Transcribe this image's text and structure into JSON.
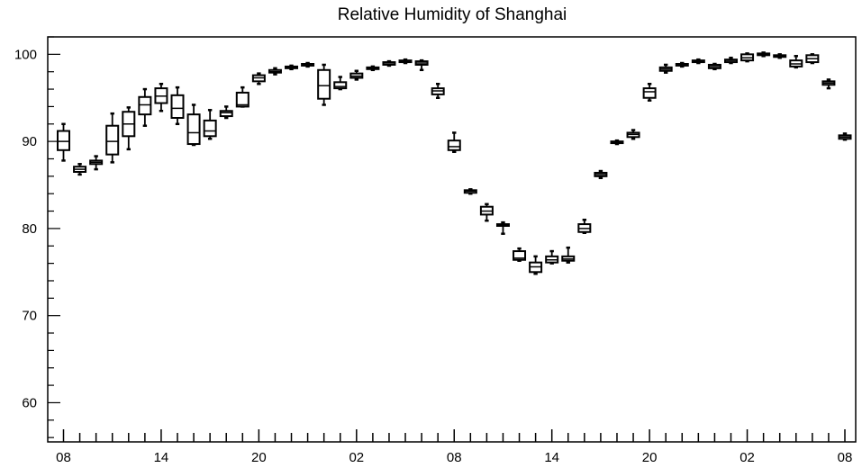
{
  "chart_data": {
    "type": "box",
    "title": "Relative Humidity of Shanghai",
    "xlabel": "",
    "ylabel": "",
    "ylim": [
      55.5,
      102
    ],
    "y_ticks": [
      "60",
      "70",
      "80",
      "90",
      "100"
    ],
    "x_tick_labels": [
      "08",
      "14",
      "20",
      "02",
      "08",
      "14",
      "20",
      "02",
      "08"
    ],
    "grid": false,
    "series": [
      {
        "boxes": [
          {
            "x": 1,
            "min": 87.8,
            "q1": 89.0,
            "median": 90.0,
            "q3": 91.2,
            "max": 92.0
          },
          {
            "x": 2,
            "min": 86.2,
            "q1": 86.5,
            "median": 86.8,
            "q3": 87.1,
            "max": 87.4
          },
          {
            "x": 3,
            "min": 86.8,
            "q1": 87.4,
            "median": 87.6,
            "q3": 87.8,
            "max": 88.3
          },
          {
            "x": 4,
            "min": 87.6,
            "q1": 88.5,
            "median": 90.0,
            "q3": 91.8,
            "max": 93.2
          },
          {
            "x": 5,
            "min": 89.1,
            "q1": 90.6,
            "median": 92.0,
            "q3": 93.4,
            "max": 93.9
          },
          {
            "x": 6,
            "min": 91.8,
            "q1": 93.1,
            "median": 94.2,
            "q3": 95.1,
            "max": 96.0
          },
          {
            "x": 7,
            "min": 93.5,
            "q1": 94.4,
            "median": 95.2,
            "q3": 96.1,
            "max": 96.6
          },
          {
            "x": 8,
            "min": 92.0,
            "q1": 92.7,
            "median": 93.8,
            "q3": 95.3,
            "max": 96.2
          },
          {
            "x": 9,
            "min": 89.6,
            "q1": 89.7,
            "median": 91.0,
            "q3": 93.1,
            "max": 94.2
          },
          {
            "x": 10,
            "min": 90.3,
            "q1": 90.6,
            "median": 91.2,
            "q3": 92.4,
            "max": 93.6
          },
          {
            "x": 11,
            "min": 92.7,
            "q1": 92.9,
            "median": 93.3,
            "q3": 93.5,
            "max": 94.0
          },
          {
            "x": 12,
            "min": 94.0,
            "q1": 94.0,
            "median": 94.2,
            "q3": 95.6,
            "max": 96.2
          },
          {
            "x": 13,
            "min": 96.6,
            "q1": 96.9,
            "median": 97.3,
            "q3": 97.6,
            "max": 97.8
          },
          {
            "x": 14,
            "min": 97.7,
            "q1": 97.9,
            "median": 98.0,
            "q3": 98.2,
            "max": 98.4
          },
          {
            "x": 15,
            "min": 98.3,
            "q1": 98.4,
            "median": 98.5,
            "q3": 98.6,
            "max": 98.7
          },
          {
            "x": 16,
            "min": 98.6,
            "q1": 98.7,
            "median": 98.8,
            "q3": 98.9,
            "max": 99.0
          },
          {
            "x": 17,
            "min": 94.2,
            "q1": 94.9,
            "median": 96.4,
            "q3": 98.2,
            "max": 98.8
          },
          {
            "x": 18,
            "min": 96.0,
            "q1": 96.1,
            "median": 96.3,
            "q3": 96.8,
            "max": 97.4
          },
          {
            "x": 19,
            "min": 97.1,
            "q1": 97.3,
            "median": 97.5,
            "q3": 97.8,
            "max": 98.1
          },
          {
            "x": 20,
            "min": 98.2,
            "q1": 98.3,
            "median": 98.4,
            "q3": 98.5,
            "max": 98.6
          },
          {
            "x": 21,
            "min": 98.7,
            "q1": 98.8,
            "median": 98.9,
            "q3": 99.1,
            "max": 99.2
          },
          {
            "x": 22,
            "min": 99.0,
            "q1": 99.1,
            "median": 99.2,
            "q3": 99.3,
            "max": 99.4
          },
          {
            "x": 23,
            "min": 98.2,
            "q1": 98.8,
            "median": 99.0,
            "q3": 99.2,
            "max": 99.3
          },
          {
            "x": 24,
            "min": 95.0,
            "q1": 95.4,
            "median": 95.8,
            "q3": 96.1,
            "max": 96.6
          },
          {
            "x": 25,
            "min": 88.8,
            "q1": 89.0,
            "median": 89.4,
            "q3": 90.1,
            "max": 91.0
          },
          {
            "x": 26,
            "min": 84.0,
            "q1": 84.1,
            "median": 84.3,
            "q3": 84.4,
            "max": 84.5
          },
          {
            "x": 27,
            "min": 80.9,
            "q1": 81.6,
            "median": 82.0,
            "q3": 82.5,
            "max": 82.8
          },
          {
            "x": 28,
            "min": 79.4,
            "q1": 80.3,
            "median": 80.4,
            "q3": 80.5,
            "max": 80.7
          },
          {
            "x": 29,
            "min": 76.3,
            "q1": 76.4,
            "median": 76.6,
            "q3": 77.4,
            "max": 77.7
          },
          {
            "x": 30,
            "min": 74.8,
            "q1": 75.0,
            "median": 75.6,
            "q3": 76.1,
            "max": 76.8
          },
          {
            "x": 31,
            "min": 76.0,
            "q1": 76.1,
            "median": 76.4,
            "q3": 76.8,
            "max": 77.4
          },
          {
            "x": 32,
            "min": 76.1,
            "q1": 76.3,
            "median": 76.5,
            "q3": 76.8,
            "max": 77.8
          },
          {
            "x": 33,
            "min": 79.5,
            "q1": 79.6,
            "median": 80.0,
            "q3": 80.5,
            "max": 81.0
          },
          {
            "x": 34,
            "min": 85.8,
            "q1": 86.0,
            "median": 86.2,
            "q3": 86.4,
            "max": 86.6
          },
          {
            "x": 35,
            "min": 89.7,
            "q1": 89.8,
            "median": 89.9,
            "q3": 90.0,
            "max": 90.1
          },
          {
            "x": 36,
            "min": 90.3,
            "q1": 90.5,
            "median": 90.8,
            "q3": 91.0,
            "max": 91.3
          },
          {
            "x": 37,
            "min": 94.7,
            "q1": 95.0,
            "median": 95.7,
            "q3": 96.1,
            "max": 96.6
          },
          {
            "x": 38,
            "min": 97.9,
            "q1": 98.1,
            "median": 98.3,
            "q3": 98.5,
            "max": 98.8
          },
          {
            "x": 39,
            "min": 98.6,
            "q1": 98.7,
            "median": 98.8,
            "q3": 98.9,
            "max": 99.0
          },
          {
            "x": 40,
            "min": 99.0,
            "q1": 99.1,
            "median": 99.2,
            "q3": 99.3,
            "max": 99.4
          },
          {
            "x": 41,
            "min": 98.3,
            "q1": 98.4,
            "median": 98.6,
            "q3": 98.8,
            "max": 98.9
          },
          {
            "x": 42,
            "min": 99.0,
            "q1": 99.1,
            "median": 99.3,
            "q3": 99.4,
            "max": 99.6
          },
          {
            "x": 43,
            "min": 99.2,
            "q1": 99.3,
            "median": 99.6,
            "q3": 100.0,
            "max": 100.1
          },
          {
            "x": 44,
            "min": 99.8,
            "q1": 99.9,
            "median": 100.0,
            "q3": 100.1,
            "max": 100.2
          },
          {
            "x": 45,
            "min": 99.6,
            "q1": 99.7,
            "median": 99.8,
            "q3": 99.9,
            "max": 100.0
          },
          {
            "x": 46,
            "min": 98.5,
            "q1": 98.6,
            "median": 98.9,
            "q3": 99.3,
            "max": 99.8
          },
          {
            "x": 47,
            "min": 99.0,
            "q1": 99.1,
            "median": 99.5,
            "q3": 99.9,
            "max": 100.0
          },
          {
            "x": 48,
            "min": 96.1,
            "q1": 96.5,
            "median": 96.7,
            "q3": 96.9,
            "max": 97.1
          },
          {
            "x": 49,
            "min": 90.2,
            "q1": 90.3,
            "median": 90.5,
            "q3": 90.7,
            "max": 90.9
          }
        ]
      }
    ]
  },
  "colors": {
    "axis": "#000000",
    "box": "#000000",
    "background": "#ffffff"
  }
}
